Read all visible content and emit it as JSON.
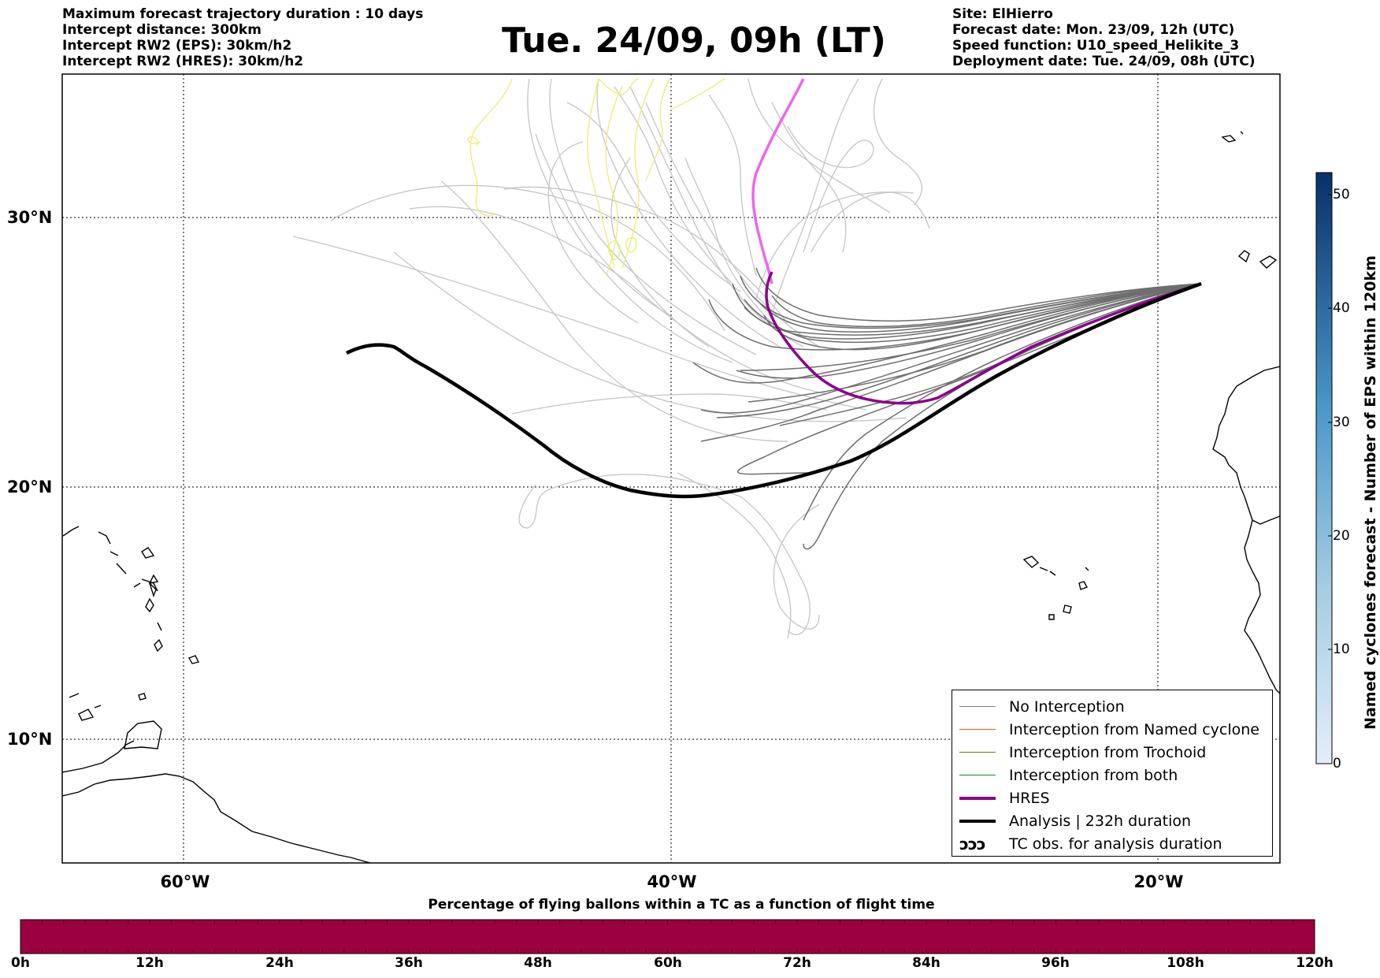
{
  "header": {
    "left_lines": [
      "Maximum forecast trajectory duration : 10 days",
      "Intercept distance: 300km",
      "Intercept RW2 (EPS):  30km/h2",
      "Intercept RW2 (HRES): 30km/h2"
    ],
    "title": "Tue. 24/09, 09h (LT)",
    "right_lines": [
      "Site: ElHierro",
      "Forecast date: Mon. 23/09, 12h (UTC)",
      "Speed function: U10_speed_Helikite_3",
      "Deployment date: Tue. 24/09, 08h (UTC)"
    ]
  },
  "map": {
    "lat_labels": [
      "30°N",
      "20°N",
      "10°N"
    ],
    "lon_labels": [
      "60°W",
      "40°W",
      "20°W"
    ],
    "colors": {
      "no_interception": "#6e6e6e",
      "eps_faded": "#c8c8c8",
      "yellow": "#eded7a",
      "hres": "#8b008b",
      "hres_light": "#ee66ee",
      "analysis": "#000000"
    }
  },
  "legend": {
    "items": [
      {
        "label": "No Interception",
        "color": "#808080"
      },
      {
        "label": "Interception from Named cyclone",
        "color": "#ff5a1f"
      },
      {
        "label": "Interception from Trochoid",
        "color": "#7a7a14"
      },
      {
        "label": "Interception from both",
        "color": "#1a8a1a"
      },
      {
        "label": "HRES",
        "color": "#8b008b"
      },
      {
        "label": "Analysis | 232h duration",
        "color": "#000000"
      },
      {
        "label": "TC obs. for analysis duration",
        "icon": "cyclone-symbols-icon"
      }
    ],
    "cyclone_glyphs": "ↄↄↄ"
  },
  "colorbar": {
    "title": "Named cyclones forecast - Number of EPS within 120km",
    "ticks": [
      "50",
      "40",
      "30",
      "20",
      "10",
      "0"
    ],
    "range": [
      0,
      52
    ]
  },
  "flight_bar": {
    "title": "Percentage of flying ballons within a TC as a function of flight time",
    "ticks": [
      "0h",
      "12h",
      "24h",
      "36h",
      "48h",
      "60h",
      "72h",
      "84h",
      "96h",
      "108h",
      "120h"
    ],
    "color": "#9b0040"
  }
}
